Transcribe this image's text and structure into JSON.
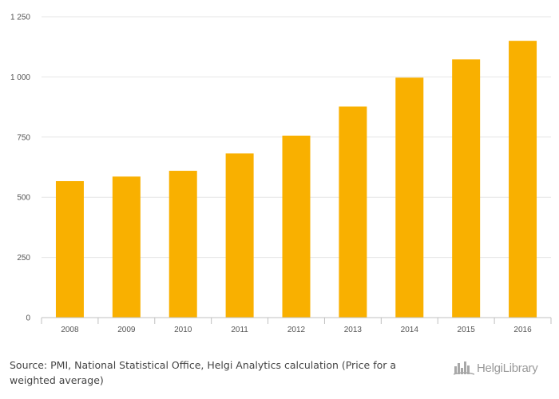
{
  "chart_data": {
    "type": "bar",
    "categories": [
      "2008",
      "2009",
      "2010",
      "2011",
      "2012",
      "2013",
      "2014",
      "2015",
      "2016"
    ],
    "values": [
      567,
      586,
      610,
      682,
      756,
      877,
      997,
      1073,
      1150
    ],
    "ylim": [
      0,
      1250
    ],
    "yticks": [
      0,
      250,
      500,
      750,
      1000,
      1250
    ],
    "ytick_labels": [
      "0",
      "250",
      "500",
      "750",
      "1 000",
      "1 250"
    ],
    "grid": true,
    "bar_color": "#F9B000",
    "grid_color": "#E6E6E6",
    "axis_color": "#C0C0C0"
  },
  "footer": {
    "source_label": "Source:",
    "source_text": "PMI, National Statistical Office, Helgi Analytics calculation (Price for a weighted average)"
  },
  "logo": {
    "text": "HelgiLibrary",
    "icon": "helgi-library-logo-icon"
  }
}
